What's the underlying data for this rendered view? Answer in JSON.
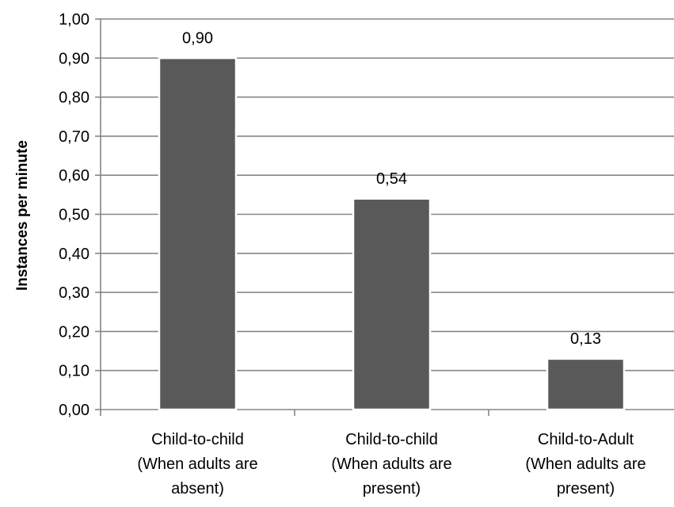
{
  "chart_data": {
    "type": "bar",
    "title": "",
    "xlabel": "",
    "ylabel": "Instances per minute",
    "categories": [
      [
        "Child-to-child",
        "(When adults are",
        "absent)"
      ],
      [
        "Child-to-child",
        "(When adults are",
        "present)"
      ],
      [
        "Child-to-Adult",
        "(When adults are",
        "present)"
      ]
    ],
    "values": [
      0.9,
      0.54,
      0.13
    ],
    "data_labels": [
      "0,90",
      "0,54",
      "0,13"
    ],
    "ylim": [
      0,
      1.0
    ],
    "yticks": [
      0.0,
      0.1,
      0.2,
      0.3,
      0.4,
      0.5,
      0.6,
      0.7,
      0.8,
      0.9,
      1.0
    ],
    "ytick_labels": [
      "0,00",
      "0,10",
      "0,20",
      "0,30",
      "0,40",
      "0,50",
      "0,60",
      "0,70",
      "0,80",
      "0,90",
      "1,00"
    ],
    "grid": true,
    "legend": "none",
    "colors": {
      "bar": "#595959",
      "bar_edge": "#ffffff",
      "grid": "#868686",
      "axis": "#868686"
    }
  }
}
